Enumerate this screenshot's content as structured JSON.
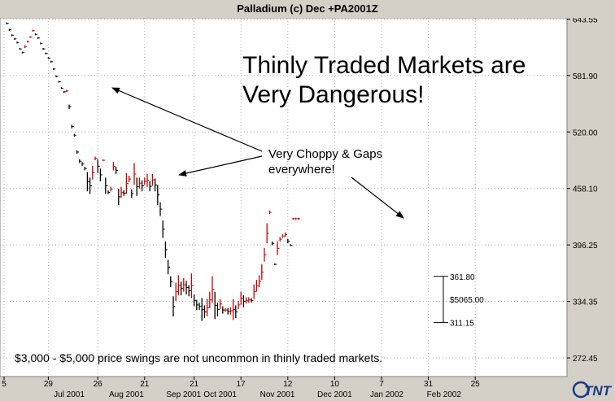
{
  "window": {
    "title": "Palladium (c) Dec +PA2001Z"
  },
  "colors": {
    "up_bar": "#cc0000",
    "down_bar": "#000000",
    "grid": "#b0b0b0",
    "background": "#ffffff",
    "frame": "#d4d0c8"
  },
  "annotations": {
    "headline_line1": "Thinly Traded Markets are",
    "headline_line2": "Very Dangerous!",
    "choppy_line1": "Very Choppy & Gaps",
    "choppy_line2": "everywhere!",
    "footer": "$3,000 - $5,000 price swings are not uncommon in thinly traded markets."
  },
  "range_marker": {
    "high": "361.80",
    "low": "311.15",
    "delta": "$5065.00"
  },
  "logo": {
    "text": "TNT"
  },
  "chart_data": {
    "type": "ohlc",
    "title": "Palladium (c) Dec +PA2001Z",
    "ylim": [
      252,
      645
    ],
    "y_ticks": [
      "643.55",
      "581.90",
      "520.00",
      "458.10",
      "396.25",
      "334.35",
      "272.45"
    ],
    "x_ticks": [
      {
        "label": "5",
        "index": 0
      },
      {
        "label": "29",
        "index": 17
      },
      {
        "label": "26",
        "index": 36
      },
      {
        "label": "21",
        "index": 54
      },
      {
        "label": "21",
        "index": 73
      },
      {
        "label": "17",
        "index": 91
      },
      {
        "label": "12",
        "index": 109
      },
      {
        "label": "10",
        "index": 127
      },
      {
        "label": "7",
        "index": 145
      },
      {
        "label": "31",
        "index": 163
      },
      {
        "label": "25",
        "index": 181
      }
    ],
    "month_labels": [
      {
        "label": "Jul 2001",
        "index": 25
      },
      {
        "label": "Aug 2001",
        "index": 47
      },
      {
        "label": "Sep 2001",
        "index": 69
      },
      {
        "label": "Oct 2001",
        "index": 83
      },
      {
        "label": "Nov 2001",
        "index": 105
      },
      {
        "label": "Dec 2001",
        "index": 127
      },
      {
        "label": "Jan 2002",
        "index": 147
      },
      {
        "label": "Feb 2002",
        "index": 169
      }
    ],
    "bars": [
      {
        "i": 1,
        "h": 640,
        "l": 638
      },
      {
        "i": 2,
        "h": 633,
        "l": 631
      },
      {
        "i": 3,
        "h": 627,
        "l": 625
      },
      {
        "i": 4,
        "h": 623,
        "l": 621
      },
      {
        "i": 5,
        "h": 619,
        "l": 617
      },
      {
        "i": 6,
        "h": 612,
        "l": 610
      },
      {
        "i": 7,
        "h": 608,
        "l": 606
      },
      {
        "i": 8,
        "h": 615,
        "l": 612
      },
      {
        "i": 9,
        "h": 620,
        "l": 618
      },
      {
        "i": 10,
        "h": 625,
        "l": 623
      },
      {
        "i": 11,
        "h": 632,
        "l": 630
      },
      {
        "i": 12,
        "h": 628,
        "l": 626
      },
      {
        "i": 13,
        "h": 624,
        "l": 622
      },
      {
        "i": 14,
        "h": 618,
        "l": 616
      },
      {
        "i": 15,
        "h": 612,
        "l": 610
      },
      {
        "i": 16,
        "h": 607,
        "l": 605
      },
      {
        "i": 17,
        "h": 602,
        "l": 600
      },
      {
        "i": 18,
        "h": 598,
        "l": 596
      },
      {
        "i": 19,
        "h": 590,
        "l": 588
      },
      {
        "i": 20,
        "h": 582,
        "l": 580
      },
      {
        "i": 21,
        "h": 576,
        "l": 574
      },
      {
        "i": 22,
        "h": 569,
        "l": 567
      },
      {
        "i": 23,
        "h": 565,
        "l": 563
      },
      {
        "i": 24,
        "h": 566,
        "l": 564
      },
      {
        "i": 25,
        "h": 550,
        "l": 545
      },
      {
        "i": 26,
        "h": 528,
        "l": 524
      },
      {
        "i": 27,
        "h": 518,
        "l": 515
      },
      {
        "i": 28,
        "h": 500,
        "l": 496
      },
      {
        "i": 29,
        "h": 490,
        "l": 486
      },
      {
        "i": 30,
        "h": 487,
        "l": 483
      },
      {
        "i": 31,
        "h": 482,
        "l": 478
      },
      {
        "i": 32,
        "h": 476,
        "l": 455
      },
      {
        "i": 33,
        "h": 470,
        "l": 452
      },
      {
        "i": 34,
        "h": 483,
        "l": 468
      },
      {
        "i": 35,
        "h": 493,
        "l": 489
      },
      {
        "i": 36,
        "h": 490,
        "l": 475
      },
      {
        "i": 37,
        "h": 480,
        "l": 466
      },
      {
        "i": 38,
        "h": 490,
        "l": 488
      },
      {
        "i": 39,
        "h": 470,
        "l": 452
      },
      {
        "i": 40,
        "h": 456,
        "l": 452
      },
      {
        "i": 41,
        "h": 460,
        "l": 455
      },
      {
        "i": 42,
        "h": 487,
        "l": 478
      },
      {
        "i": 43,
        "h": 482,
        "l": 474
      },
      {
        "i": 44,
        "h": 458,
        "l": 440
      },
      {
        "i": 45,
        "h": 460,
        "l": 448
      },
      {
        "i": 46,
        "h": 456,
        "l": 450
      },
      {
        "i": 47,
        "h": 475,
        "l": 452
      },
      {
        "i": 48,
        "h": 472,
        "l": 465
      },
      {
        "i": 49,
        "h": 457,
        "l": 448
      },
      {
        "i": 50,
        "h": 486,
        "l": 462
      },
      {
        "i": 51,
        "h": 470,
        "l": 450
      },
      {
        "i": 52,
        "h": 470,
        "l": 458
      },
      {
        "i": 53,
        "h": 467,
        "l": 455
      },
      {
        "i": 54,
        "h": 470,
        "l": 462
      },
      {
        "i": 55,
        "h": 474,
        "l": 460
      },
      {
        "i": 56,
        "h": 466,
        "l": 455
      },
      {
        "i": 57,
        "h": 474,
        "l": 461
      },
      {
        "i": 58,
        "h": 469,
        "l": 455
      },
      {
        "i": 59,
        "h": 462,
        "l": 440
      },
      {
        "i": 60,
        "h": 443,
        "l": 428
      },
      {
        "i": 61,
        "h": 423,
        "l": 404
      },
      {
        "i": 62,
        "h": 400,
        "l": 382
      },
      {
        "i": 63,
        "h": 380,
        "l": 364
      },
      {
        "i": 64,
        "h": 362,
        "l": 350
      },
      {
        "i": 65,
        "h": 340,
        "l": 318
      },
      {
        "i": 66,
        "h": 355,
        "l": 335
      },
      {
        "i": 67,
        "h": 363,
        "l": 341
      },
      {
        "i": 68,
        "h": 356,
        "l": 341
      },
      {
        "i": 69,
        "h": 360,
        "l": 345
      },
      {
        "i": 70,
        "h": 357,
        "l": 342
      },
      {
        "i": 71,
        "h": 352,
        "l": 340
      },
      {
        "i": 72,
        "h": 365,
        "l": 338
      },
      {
        "i": 73,
        "h": 342,
        "l": 329
      },
      {
        "i": 74,
        "h": 336,
        "l": 325
      },
      {
        "i": 75,
        "h": 333,
        "l": 325
      },
      {
        "i": 76,
        "h": 338,
        "l": 313
      },
      {
        "i": 77,
        "h": 330,
        "l": 316
      },
      {
        "i": 78,
        "h": 337,
        "l": 318
      },
      {
        "i": 79,
        "h": 345,
        "l": 327
      },
      {
        "i": 80,
        "h": 362,
        "l": 333
      },
      {
        "i": 81,
        "h": 345,
        "l": 315
      },
      {
        "i": 82,
        "h": 333,
        "l": 318
      },
      {
        "i": 83,
        "h": 337,
        "l": 326
      },
      {
        "i": 84,
        "h": 329,
        "l": 321
      },
      {
        "i": 85,
        "h": 327,
        "l": 323
      },
      {
        "i": 86,
        "h": 327,
        "l": 320
      },
      {
        "i": 87,
        "h": 328,
        "l": 320
      },
      {
        "i": 88,
        "h": 337,
        "l": 314
      },
      {
        "i": 89,
        "h": 330,
        "l": 316
      },
      {
        "i": 90,
        "h": 335,
        "l": 326
      },
      {
        "i": 91,
        "h": 345,
        "l": 331
      },
      {
        "i": 92,
        "h": 341,
        "l": 328
      },
      {
        "i": 93,
        "h": 339,
        "l": 332
      },
      {
        "i": 94,
        "h": 339,
        "l": 333
      },
      {
        "i": 95,
        "h": 338,
        "l": 333
      },
      {
        "i": 96,
        "h": 353,
        "l": 337
      },
      {
        "i": 97,
        "h": 358,
        "l": 345
      },
      {
        "i": 98,
        "h": 363,
        "l": 350
      },
      {
        "i": 99,
        "h": 375,
        "l": 358
      },
      {
        "i": 100,
        "h": 393,
        "l": 378
      },
      {
        "i": 101,
        "h": 420,
        "l": 398
      },
      {
        "i": 102,
        "h": 434,
        "l": 430
      },
      {
        "i": 103,
        "h": 400,
        "l": 396
      },
      {
        "i": 104,
        "h": 376,
        "l": 374
      },
      {
        "i": 105,
        "h": 400,
        "l": 385
      },
      {
        "i": 106,
        "h": 405,
        "l": 400
      },
      {
        "i": 107,
        "h": 408,
        "l": 404
      },
      {
        "i": 108,
        "h": 410,
        "l": 405
      },
      {
        "i": 109,
        "h": 403,
        "l": 398
      },
      {
        "i": 110,
        "h": 397,
        "l": 395
      },
      {
        "i": 111,
        "h": 426,
        "l": 424
      },
      {
        "i": 112,
        "h": 426,
        "l": 424
      },
      {
        "i": 113,
        "h": 426,
        "l": 424
      }
    ]
  }
}
